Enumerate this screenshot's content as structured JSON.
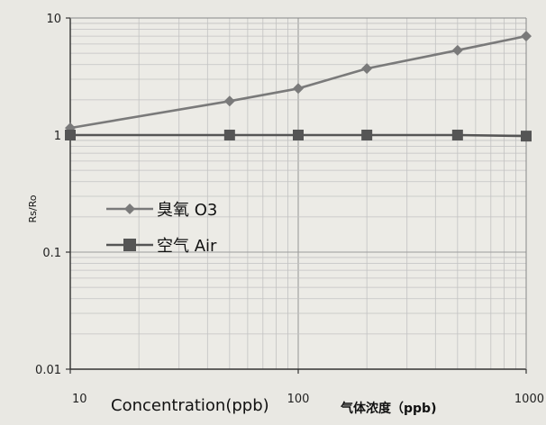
{
  "chart_data": {
    "type": "line",
    "x_scale": "log",
    "y_scale": "log",
    "xlim": [
      10,
      1000
    ],
    "ylim": [
      0.01,
      10
    ],
    "x_tick_labels": [
      "10",
      "100",
      "1000"
    ],
    "y_tick_labels": [
      "10",
      "1",
      "0.1",
      "0.01"
    ],
    "xlabel": "Concentration(ppb)",
    "xlabel_cn": "气体浓度（ppb)",
    "ylabel": "Rs/Ro",
    "grid": true,
    "legend_position": "left-middle",
    "series": [
      {
        "name": "臭氧 O3",
        "color": "#7a7a7a",
        "marker": "diamond",
        "x": [
          10,
          50,
          100,
          200,
          500,
          1000
        ],
        "y": [
          1.15,
          1.95,
          2.5,
          3.7,
          5.3,
          7.0
        ]
      },
      {
        "name": "空气 Air",
        "color": "#555555",
        "marker": "square",
        "x": [
          10,
          50,
          100,
          200,
          500,
          1000
        ],
        "y": [
          1.0,
          1.0,
          1.0,
          1.0,
          1.0,
          0.98
        ]
      }
    ]
  }
}
